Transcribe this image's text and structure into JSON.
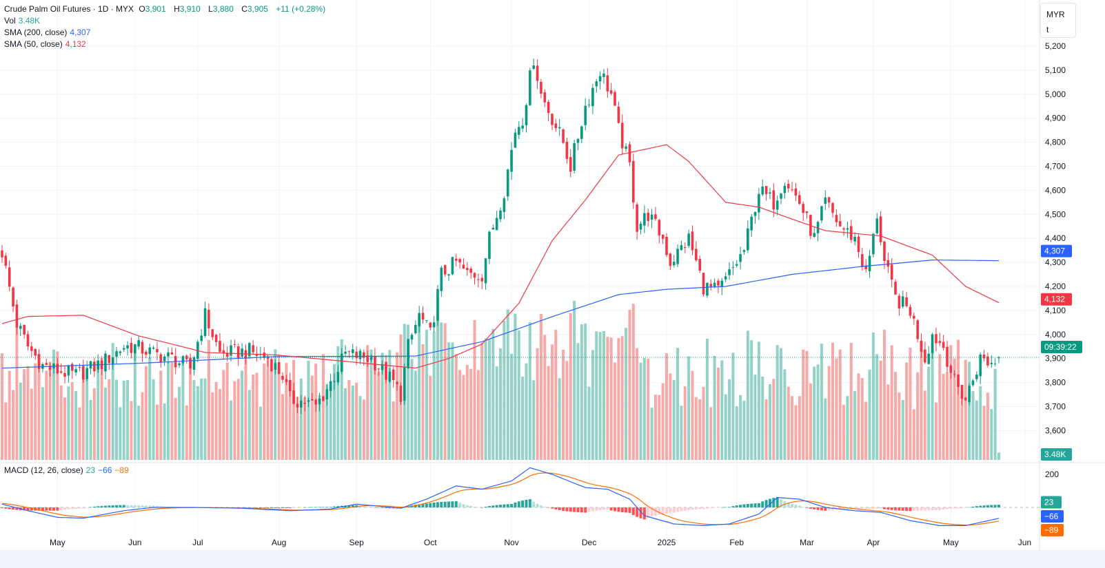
{
  "header": {
    "symbol": "Crude Palm Oil Futures · 1D · MYX",
    "o_label": "O",
    "o": "3,901",
    "h_label": "H",
    "h": "3,910",
    "l_label": "L",
    "l": "3,880",
    "c_label": "C",
    "c": "3,905",
    "change": "+11 (+0.28%)",
    "vol_label": "Vol",
    "vol": "3.48K",
    "sma200_label": "SMA (200, close)",
    "sma200": "4,307",
    "sma50_label": "SMA (50, close)",
    "sma50": "4,132",
    "macd_label": "MACD (12, 26, close)",
    "macd_hist": "23",
    "macd_line": "−66",
    "macd_signal": "−89"
  },
  "unit": {
    "currency": "MYR",
    "unit": "t"
  },
  "badges": {
    "sma200": "4,307",
    "sma50": "4,132",
    "countdown": "09:39:22",
    "volume": "3.48K",
    "macd_hist": "23",
    "macd_line": "−66",
    "macd_signal": "−89"
  },
  "colors": {
    "up": "#089981",
    "down": "#f23645",
    "sma200": "#2962ff",
    "sma50": "#f23645",
    "macd": "#2962ff",
    "signal": "#ff6d00",
    "vol_up": "#92d2c7",
    "vol_down": "#f7a9a7"
  },
  "chart_data": {
    "type": "candlestick",
    "title": "Crude Palm Oil Futures · 1D · MYX",
    "candle_count": 271,
    "price_ylim": [
      3560,
      5240
    ],
    "price_ticks": [
      "5,200",
      "5,100",
      "5,000",
      "4,900",
      "4,800",
      "4,700",
      "4,600",
      "4,500",
      "4,400",
      "4,300",
      "4,200",
      "4,100",
      "4,000",
      "3,900",
      "3,800",
      "3,700",
      "3,600"
    ],
    "price_tick_values": [
      5200,
      5100,
      5000,
      4900,
      4800,
      4700,
      4600,
      4500,
      4400,
      4300,
      4200,
      4100,
      4000,
      3900,
      3800,
      3700,
      3600
    ],
    "last_candle": {
      "open": 3901,
      "high": 3910,
      "low": 3880,
      "close": 3905,
      "volume_k": 3.48
    },
    "current_price": 3905,
    "close_path": [
      [
        0,
        4343
      ],
      [
        4,
        4045
      ],
      [
        7,
        3950
      ],
      [
        11,
        3870
      ],
      [
        15,
        3850
      ],
      [
        20,
        3830
      ],
      [
        27,
        3880
      ],
      [
        33,
        3950
      ],
      [
        36,
        3950
      ],
      [
        41,
        3920
      ],
      [
        46,
        3900
      ],
      [
        51,
        3860
      ],
      [
        55,
        4080
      ],
      [
        59,
        3920
      ],
      [
        67,
        3930
      ],
      [
        72,
        3900
      ],
      [
        76,
        3830
      ],
      [
        78,
        3730
      ],
      [
        82,
        3720
      ],
      [
        85,
        3700
      ],
      [
        89,
        3800
      ],
      [
        93,
        3920
      ],
      [
        100,
        3900
      ],
      [
        106,
        3800
      ],
      [
        108,
        3750
      ],
      [
        110,
        3950
      ],
      [
        113,
        4080
      ],
      [
        116,
        4000
      ],
      [
        119,
        4250
      ],
      [
        123,
        4300
      ],
      [
        126,
        4250
      ],
      [
        130,
        4250
      ],
      [
        132,
        4400
      ],
      [
        136,
        4600
      ],
      [
        139,
        4850
      ],
      [
        141,
        4900
      ],
      [
        144,
        5150
      ],
      [
        146,
        5000
      ],
      [
        149,
        4900
      ],
      [
        152,
        4800
      ],
      [
        154,
        4700
      ],
      [
        158,
        4950
      ],
      [
        162,
        5100
      ],
      [
        165,
        5000
      ],
      [
        167,
        4850
      ],
      [
        170,
        4700
      ],
      [
        172,
        4450
      ],
      [
        175,
        4500
      ],
      [
        179,
        4400
      ],
      [
        181,
        4300
      ],
      [
        186,
        4400
      ],
      [
        190,
        4200
      ],
      [
        194,
        4180
      ],
      [
        197,
        4250
      ],
      [
        201,
        4350
      ],
      [
        205,
        4600
      ],
      [
        209,
        4550
      ],
      [
        212,
        4650
      ],
      [
        216,
        4550
      ],
      [
        220,
        4400
      ],
      [
        223,
        4550
      ],
      [
        227,
        4450
      ],
      [
        231,
        4400
      ],
      [
        234,
        4250
      ],
      [
        236,
        4400
      ],
      [
        237,
        4500
      ],
      [
        239,
        4300
      ],
      [
        242,
        4150
      ],
      [
        246,
        4100
      ],
      [
        250,
        3900
      ],
      [
        252,
        4000
      ],
      [
        255,
        3950
      ],
      [
        258,
        3800
      ],
      [
        261,
        3730
      ],
      [
        265,
        3900
      ],
      [
        268,
        3880
      ],
      [
        270,
        3905
      ]
    ],
    "sma50_path": [
      [
        0,
        4045
      ],
      [
        7,
        4075
      ],
      [
        22,
        4080
      ],
      [
        37,
        3994
      ],
      [
        46,
        3960
      ],
      [
        55,
        3925
      ],
      [
        74,
        3915
      ],
      [
        93,
        3888
      ],
      [
        112,
        3860
      ],
      [
        121,
        3900
      ],
      [
        130,
        3960
      ],
      [
        140,
        4130
      ],
      [
        149,
        4390
      ],
      [
        158,
        4560
      ],
      [
        167,
        4747
      ],
      [
        180,
        4790
      ],
      [
        186,
        4720
      ],
      [
        196,
        4550
      ],
      [
        205,
        4530
      ],
      [
        214,
        4480
      ],
      [
        223,
        4432
      ],
      [
        238,
        4410
      ],
      [
        252,
        4330
      ],
      [
        261,
        4200
      ],
      [
        270,
        4132
      ]
    ],
    "sma200_path": [
      [
        0,
        3860
      ],
      [
        37,
        3880
      ],
      [
        74,
        3908
      ],
      [
        112,
        3910
      ],
      [
        130,
        3970
      ],
      [
        149,
        4074
      ],
      [
        167,
        4166
      ],
      [
        180,
        4188
      ],
      [
        196,
        4200
      ],
      [
        214,
        4250
      ],
      [
        233,
        4283
      ],
      [
        252,
        4310
      ],
      [
        270,
        4307
      ]
    ],
    "macd_ylim": [
      -160,
      260
    ],
    "macd_ticks": [
      "200"
    ],
    "macd_tick_values": [
      200
    ],
    "macd_path": [
      [
        0,
        20
      ],
      [
        7,
        -20
      ],
      [
        15,
        -60
      ],
      [
        22,
        -65
      ],
      [
        33,
        -20
      ],
      [
        41,
        0
      ],
      [
        52,
        0
      ],
      [
        65,
        -5
      ],
      [
        78,
        -20
      ],
      [
        89,
        -10
      ],
      [
        96,
        20
      ],
      [
        108,
        -5
      ],
      [
        115,
        50
      ],
      [
        123,
        130
      ],
      [
        130,
        110
      ],
      [
        138,
        160
      ],
      [
        143,
        240
      ],
      [
        149,
        200
      ],
      [
        158,
        120
      ],
      [
        164,
        110
      ],
      [
        170,
        50
      ],
      [
        174,
        -50
      ],
      [
        182,
        -100
      ],
      [
        190,
        -110
      ],
      [
        197,
        -100
      ],
      [
        205,
        -40
      ],
      [
        210,
        60
      ],
      [
        216,
        50
      ],
      [
        223,
        0
      ],
      [
        231,
        -20
      ],
      [
        238,
        -30
      ],
      [
        246,
        -80
      ],
      [
        254,
        -110
      ],
      [
        261,
        -110
      ],
      [
        270,
        -66
      ]
    ],
    "volume_max_k": 75,
    "time_ticks": [
      {
        "label": "May",
        "index": 15
      },
      {
        "label": "Jun",
        "index": 36
      },
      {
        "label": "Jul",
        "index": 53
      },
      {
        "label": "Aug",
        "index": 75
      },
      {
        "label": "Sep",
        "index": 96
      },
      {
        "label": "Oct",
        "index": 116
      },
      {
        "label": "Nov",
        "index": 138
      },
      {
        "label": "Dec",
        "index": 159
      },
      {
        "label": "2025",
        "index": 180
      },
      {
        "label": "Feb",
        "index": 199
      },
      {
        "label": "Mar",
        "index": 218
      },
      {
        "label": "Apr",
        "index": 236
      },
      {
        "label": "May",
        "index": 257
      },
      {
        "label": "Jun",
        "index": 277
      }
    ]
  }
}
